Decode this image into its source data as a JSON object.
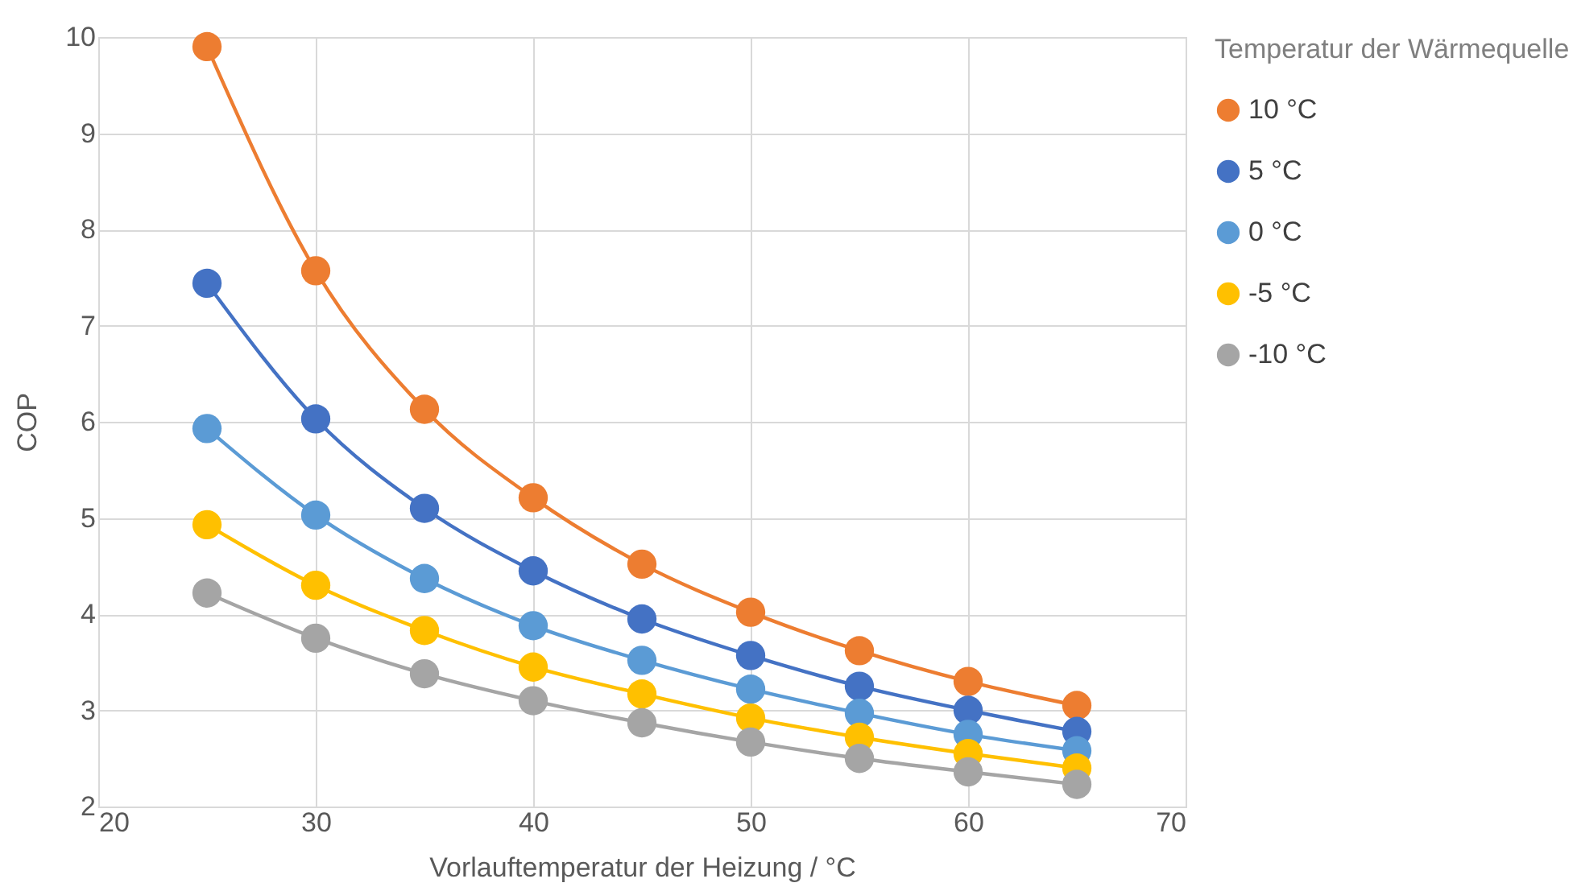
{
  "chart_data": {
    "type": "line",
    "xlabel": "Vorlauftemperatur der Heizung / °C",
    "ylabel": "COP",
    "legend_title": "Temperatur der Wärmequelle",
    "x": [
      25,
      30,
      35,
      40,
      45,
      50,
      55,
      60,
      65
    ],
    "series": [
      {
        "name": "10 °C",
        "color": "#ed7d31",
        "values": [
          9.9,
          7.57,
          6.13,
          5.21,
          4.52,
          4.02,
          3.62,
          3.3,
          3.05
        ]
      },
      {
        "name": "5 °C",
        "color": "#4472c4",
        "values": [
          7.44,
          6.03,
          5.1,
          4.45,
          3.95,
          3.57,
          3.25,
          3.0,
          2.78
        ]
      },
      {
        "name": "0 °C",
        "color": "#5b9bd5",
        "values": [
          5.93,
          5.03,
          4.37,
          3.88,
          3.52,
          3.22,
          2.97,
          2.75,
          2.58
        ]
      },
      {
        "name": "-5 °C",
        "color": "#ffc000",
        "values": [
          4.93,
          4.3,
          3.83,
          3.45,
          3.17,
          2.92,
          2.72,
          2.55,
          2.4
        ]
      },
      {
        "name": "-10 °C",
        "color": "#a5a5a5",
        "values": [
          4.22,
          3.75,
          3.38,
          3.1,
          2.87,
          2.67,
          2.5,
          2.36,
          2.23
        ]
      }
    ],
    "xlim": [
      20,
      70
    ],
    "xticks": [
      20,
      30,
      40,
      50,
      60,
      70
    ],
    "ylim": [
      2,
      10
    ],
    "yticks": [
      2,
      3,
      4,
      5,
      6,
      7,
      8,
      9,
      10
    ],
    "grid": true,
    "legend": "right",
    "marker": "circle",
    "line_style": "solid"
  }
}
